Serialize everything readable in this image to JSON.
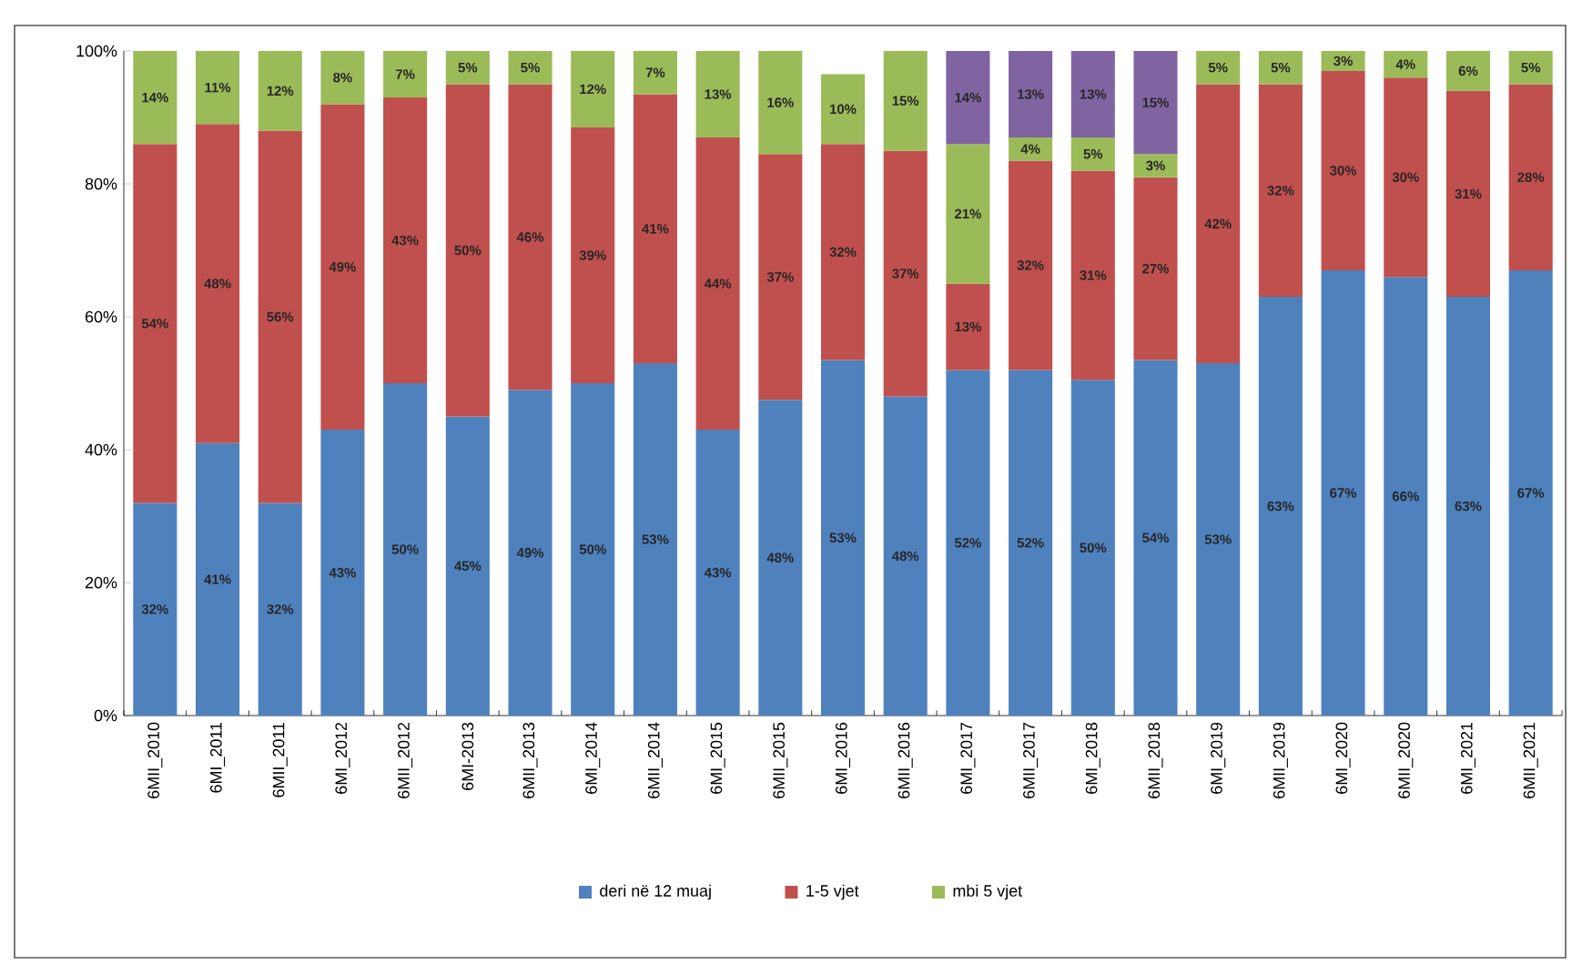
{
  "chart_data": {
    "type": "bar",
    "stacked": true,
    "categories": [
      "6MII_2010",
      "6MI_2011",
      "6MII_2011",
      "6MI_2012",
      "6MII_2012",
      "6MI-2013",
      "6MII_2013",
      "6MI_2014",
      "6MII_2014",
      "6MI_2015",
      "6MII_2015",
      "6MI_2016",
      "6MII_2016",
      "6MI_2017",
      "6MII_2017",
      "6MI_2018",
      "6MII_2018",
      "6MI_2019",
      "6MII_2019",
      "6MI_2020",
      "6MII_2020",
      "6MI_2021",
      "6MII_2021"
    ],
    "series": [
      {
        "name": "deri në 12 muaj",
        "color": "#4f81bd",
        "values": [
          32,
          41,
          32,
          43,
          50,
          45,
          49,
          50,
          53,
          43,
          47.5,
          53.5,
          48,
          52,
          52,
          50.5,
          53.5,
          53,
          63,
          67,
          66,
          63,
          67
        ],
        "value_labels": [
          "32%",
          "41%",
          "32%",
          "43%",
          "50%",
          "45%",
          "49%",
          "50%",
          "53%",
          "43%",
          "48%",
          "53%",
          "48%",
          "52%",
          "52%",
          "50%",
          "54%",
          "53%",
          "63%",
          "67%",
          "66%",
          "63%",
          "67%"
        ]
      },
      {
        "name": "1-5 vjet",
        "color": "#c0504d",
        "values": [
          54,
          48,
          56,
          49,
          43,
          50,
          46,
          38.5,
          40.5,
          44,
          37,
          32.5,
          37,
          13,
          31.5,
          31.5,
          27.5,
          42,
          32,
          30,
          30,
          31,
          28
        ],
        "value_labels": [
          "54%",
          "48%",
          "56%",
          "49%",
          "43%",
          "50%",
          "46%",
          "39%",
          "41%",
          "44%",
          "37%",
          "32%",
          "37%",
          "13%",
          "32%",
          "31%",
          "27%",
          "42%",
          "32%",
          "30%",
          "30%",
          "31%",
          "28%"
        ]
      },
      {
        "name": "mbi 5 vjet",
        "color": "#9bbb59",
        "values": [
          14,
          11,
          12,
          8,
          7,
          5,
          5,
          11.5,
          6.5,
          13,
          15.5,
          10.5,
          15,
          21,
          3.5,
          5,
          3.5,
          5,
          5,
          3,
          4,
          6,
          5
        ],
        "value_labels": [
          "14%",
          "11%",
          "12%",
          "8%",
          "7%",
          "5%",
          "5%",
          "12%",
          "7%",
          "13%",
          "16%",
          "10%",
          "15%",
          "21%",
          "4%",
          "5%",
          "3%",
          "5%",
          "5%",
          "3%",
          "4%",
          "6%",
          "5%"
        ]
      },
      {
        "color": "#8064a2",
        "values": [
          null,
          null,
          null,
          null,
          null,
          null,
          null,
          null,
          null,
          null,
          null,
          null,
          null,
          14,
          13,
          13,
          15.5,
          null,
          null,
          null,
          null,
          null,
          null
        ],
        "value_labels": [
          null,
          null,
          null,
          null,
          null,
          null,
          null,
          null,
          null,
          null,
          null,
          null,
          null,
          "14%",
          "13%",
          "13%",
          "15%",
          null,
          null,
          null,
          null,
          null,
          null
        ]
      }
    ],
    "ylim": [
      0,
      100
    ],
    "yticks": [
      {
        "value": 0,
        "label": "0%"
      },
      {
        "value": 20,
        "label": "20%"
      },
      {
        "value": 40,
        "label": "40%"
      },
      {
        "value": 60,
        "label": "60%"
      },
      {
        "value": 80,
        "label": "80%"
      },
      {
        "value": 100,
        "label": "100%"
      }
    ],
    "grid": false,
    "legend": "bottom"
  }
}
